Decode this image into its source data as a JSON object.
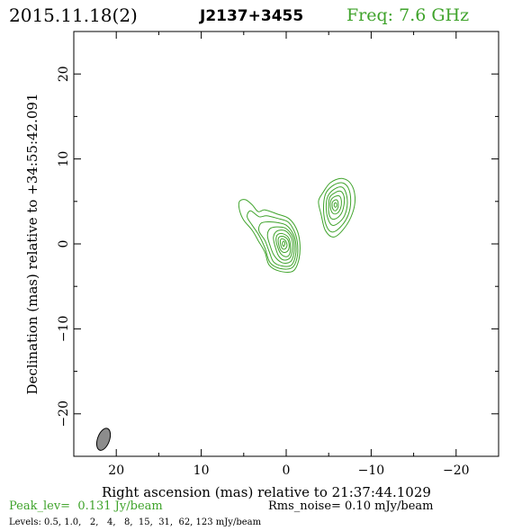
{
  "header": {
    "date": "2015.11.18(2)",
    "source": "J2137+3455",
    "freq": "Freq: 7.6 GHz"
  },
  "footer": {
    "peak": "Peak_lev=  0.131 Jy/beam",
    "rms": "Rms_noise= 0.10 mJy/beam",
    "levels": "Levels: 0.5, 1.0,   2,   4,   8,  15,  31,  62, 123 mJy/beam"
  },
  "colors": {
    "contour": "#3fa32b",
    "text": "#000000",
    "beam_fill": "#8c8c8c"
  },
  "chart_data": {
    "type": "contour",
    "xlabel": "Right ascension (mas) relative to 21:37:44.1029",
    "ylabel": "Declination (mas) relative to +34:55:42.091",
    "xlim": [
      25,
      -25
    ],
    "ylim": [
      -25,
      25
    ],
    "x_ticks": [
      20,
      10,
      0,
      -10,
      -20
    ],
    "x_tick_labels": [
      "20",
      "10",
      "0",
      "−10",
      "−20"
    ],
    "y_ticks": [
      20,
      10,
      0,
      -10,
      -20
    ],
    "y_tick_labels": [
      "20",
      "10",
      "0",
      "−10",
      "−20"
    ],
    "contour_levels_mJy_per_beam": [
      0.5,
      1.0,
      2,
      4,
      8,
      15,
      31,
      62,
      123
    ],
    "components": [
      {
        "x": 0.3,
        "y": 0.2,
        "contours": [
          [
            [
              -0.3,
              3
            ],
            [
              1,
              3.5
            ],
            [
              2.5,
              4
            ],
            [
              3.3,
              3.8
            ],
            [
              4,
              4.6
            ],
            [
              4.8,
              5.2
            ],
            [
              5.5,
              5
            ],
            [
              5.5,
              4
            ],
            [
              5,
              2.8
            ],
            [
              4,
              1.6
            ],
            [
              3.3,
              0.4
            ],
            [
              2.5,
              -1
            ],
            [
              2,
              -2.5
            ],
            [
              0.8,
              -3.2
            ],
            [
              -0.8,
              -3.2
            ],
            [
              -1.5,
              -1.8
            ],
            [
              -1.6,
              0.2
            ],
            [
              -1.2,
              1.8
            ]
          ],
          [
            [
              -0.2,
              2.6
            ],
            [
              1,
              3
            ],
            [
              2.3,
              3.3
            ],
            [
              3.2,
              3.2
            ],
            [
              4.2,
              3.9
            ],
            [
              4.6,
              3.2
            ],
            [
              4,
              2.2
            ],
            [
              3.2,
              1
            ],
            [
              2.5,
              -0.5
            ],
            [
              1.9,
              -2.2
            ],
            [
              0.7,
              -2.9
            ],
            [
              -0.7,
              -2.8
            ],
            [
              -1.3,
              -1.5
            ],
            [
              -1.3,
              0.3
            ],
            [
              -0.9,
              1.6
            ]
          ],
          [
            [
              0,
              2.2
            ],
            [
              1,
              2.5
            ],
            [
              2.1,
              2.6
            ],
            [
              3,
              2.4
            ],
            [
              3.2,
              1.5
            ],
            [
              2.5,
              0.4
            ],
            [
              2,
              -0.9
            ],
            [
              1.5,
              -2.1
            ],
            [
              0.5,
              -2.6
            ],
            [
              -0.6,
              -2.5
            ],
            [
              -1.1,
              -1.3
            ],
            [
              -1.1,
              0.3
            ],
            [
              -0.7,
              1.4
            ]
          ],
          [
            [
              0.2,
              1.9
            ],
            [
              1.1,
              2
            ],
            [
              1.9,
              1.8
            ],
            [
              2.2,
              1
            ],
            [
              1.9,
              -0.2
            ],
            [
              1.4,
              -1.4
            ],
            [
              0.5,
              -2.2
            ],
            [
              -0.5,
              -2.1
            ],
            [
              -0.9,
              -1.1
            ],
            [
              -0.9,
              0.4
            ],
            [
              -0.5,
              1.3
            ]
          ],
          [
            [
              0.3,
              1.6
            ],
            [
              1.1,
              1.5
            ],
            [
              1.5,
              0.8
            ],
            [
              1.3,
              -0.3
            ],
            [
              0.9,
              -1.4
            ],
            [
              0.3,
              -1.9
            ],
            [
              -0.4,
              -1.7
            ],
            [
              -0.7,
              -0.9
            ],
            [
              -0.7,
              0.4
            ],
            [
              -0.3,
              1.2
            ]
          ],
          [
            [
              0.4,
              1.2
            ],
            [
              1,
              1.1
            ],
            [
              1.2,
              0.5
            ],
            [
              1,
              -0.4
            ],
            [
              0.6,
              -1.2
            ],
            [
              0,
              -1.5
            ],
            [
              -0.4,
              -1.2
            ],
            [
              -0.5,
              -0.3
            ],
            [
              -0.3,
              0.7
            ]
          ],
          [
            [
              0.5,
              0.9
            ],
            [
              0.9,
              0.7
            ],
            [
              0.9,
              0
            ],
            [
              0.6,
              -0.8
            ],
            [
              0.1,
              -1
            ],
            [
              -0.3,
              -0.6
            ],
            [
              -0.3,
              0.2
            ],
            [
              0,
              0.7
            ]
          ],
          [
            [
              0.55,
              0.6
            ],
            [
              0.7,
              0.2
            ],
            [
              0.5,
              -0.5
            ],
            [
              0.15,
              -0.6
            ],
            [
              -0.1,
              -0.2
            ],
            [
              0.1,
              0.4
            ]
          ],
          [
            [
              0.35,
              0.3
            ],
            [
              0.45,
              0
            ],
            [
              0.3,
              -0.3
            ],
            [
              0.15,
              0
            ],
            [
              0.2,
              0.25
            ]
          ]
        ]
      },
      {
        "x": -6.0,
        "y": 4.5,
        "contours": [
          [
            [
              -4.3,
              6
            ],
            [
              -5.2,
              7.2
            ],
            [
              -6.5,
              7.7
            ],
            [
              -7.6,
              7.1
            ],
            [
              -8.1,
              5.5
            ],
            [
              -7.8,
              3.6
            ],
            [
              -6.8,
              1.8
            ],
            [
              -5.6,
              0.8
            ],
            [
              -4.6,
              1.6
            ],
            [
              -4.1,
              3.5
            ],
            [
              -3.8,
              5
            ]
          ],
          [
            [
              -4.6,
              5.8
            ],
            [
              -5.4,
              6.8
            ],
            [
              -6.5,
              7.2
            ],
            [
              -7.3,
              6.6
            ],
            [
              -7.6,
              5.1
            ],
            [
              -7.3,
              3.4
            ],
            [
              -6.4,
              2
            ],
            [
              -5.4,
              1.4
            ],
            [
              -4.7,
              2.2
            ],
            [
              -4.4,
              4
            ]
          ],
          [
            [
              -4.9,
              5.6
            ],
            [
              -5.6,
              6.4
            ],
            [
              -6.5,
              6.7
            ],
            [
              -7,
              6.1
            ],
            [
              -7.2,
              4.8
            ],
            [
              -6.9,
              3.4
            ],
            [
              -6.2,
              2.5
            ],
            [
              -5.4,
              2.2
            ],
            [
              -4.9,
              3
            ],
            [
              -4.7,
              4.4
            ]
          ],
          [
            [
              -5.1,
              5.4
            ],
            [
              -5.7,
              6
            ],
            [
              -6.4,
              6.2
            ],
            [
              -6.8,
              5.6
            ],
            [
              -6.8,
              4.6
            ],
            [
              -6.5,
              3.6
            ],
            [
              -5.9,
              3
            ],
            [
              -5.3,
              3
            ],
            [
              -5,
              3.8
            ]
          ],
          [
            [
              -5.3,
              5.2
            ],
            [
              -5.8,
              5.6
            ],
            [
              -6.3,
              5.6
            ],
            [
              -6.5,
              5
            ],
            [
              -6.4,
              4.2
            ],
            [
              -6,
              3.6
            ],
            [
              -5.5,
              3.6
            ],
            [
              -5.2,
              4.3
            ]
          ],
          [
            [
              -5.5,
              5
            ],
            [
              -5.9,
              5.2
            ],
            [
              -6.1,
              4.9
            ],
            [
              -6.1,
              4.3
            ],
            [
              -5.8,
              3.9
            ],
            [
              -5.5,
              4.1
            ],
            [
              -5.4,
              4.6
            ]
          ],
          [
            [
              -5.7,
              4.8
            ],
            [
              -5.9,
              4.8
            ],
            [
              -5.95,
              4.5
            ],
            [
              -5.8,
              4.3
            ],
            [
              -5.65,
              4.5
            ]
          ]
        ]
      }
    ],
    "beam": {
      "x": 21.5,
      "y": -23,
      "major_mas": 2.7,
      "minor_mas": 1.4,
      "pa_deg": 20
    },
    "grid": false,
    "legend": "none"
  }
}
